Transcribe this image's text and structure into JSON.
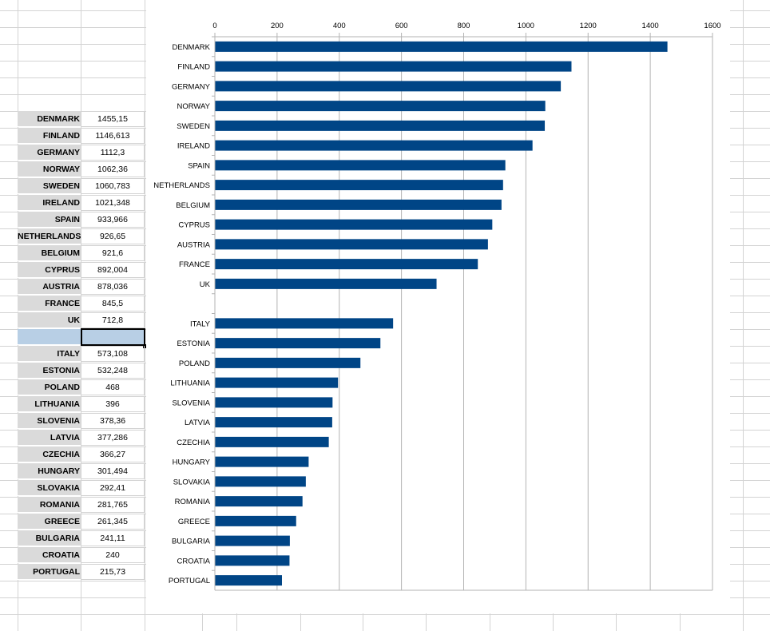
{
  "spreadsheet": {
    "rows": [
      {
        "name": "DENMARK",
        "value": "1455,15"
      },
      {
        "name": "FINLAND",
        "value": "1146,613"
      },
      {
        "name": "GERMANY",
        "value": "1112,3"
      },
      {
        "name": "NORWAY",
        "value": "1062,36"
      },
      {
        "name": "SWEDEN",
        "value": "1060,783"
      },
      {
        "name": "IRELAND",
        "value": "1021,348"
      },
      {
        "name": "SPAIN",
        "value": "933,966"
      },
      {
        "name": "NETHERLANDS",
        "value": "926,65"
      },
      {
        "name": "BELGIUM",
        "value": "921,6"
      },
      {
        "name": "CYPRUS",
        "value": "892,004"
      },
      {
        "name": "AUSTRIA",
        "value": "878,036"
      },
      {
        "name": "FRANCE",
        "value": "845,5"
      },
      {
        "name": "UK",
        "value": "712,8"
      },
      {
        "name": "",
        "value": "",
        "selected": true
      },
      {
        "name": "ITALY",
        "value": "573,108"
      },
      {
        "name": "ESTONIA",
        "value": "532,248"
      },
      {
        "name": "POLAND",
        "value": "468"
      },
      {
        "name": "LITHUANIA",
        "value": "396"
      },
      {
        "name": "SLOVENIA",
        "value": "378,36"
      },
      {
        "name": "LATVIA",
        "value": "377,286"
      },
      {
        "name": "CZECHIA",
        "value": "366,27"
      },
      {
        "name": "HUNGARY",
        "value": "301,494"
      },
      {
        "name": "SLOVAKIA",
        "value": "292,41"
      },
      {
        "name": "ROMANIA",
        "value": "281,765"
      },
      {
        "name": "GREECE",
        "value": "261,345"
      },
      {
        "name": "BULGARIA",
        "value": "241,11"
      },
      {
        "name": "CROATIA",
        "value": "240"
      },
      {
        "name": "PORTUGAL",
        "value": "215,73"
      }
    ]
  },
  "chart_data": {
    "type": "bar",
    "orientation": "horizontal",
    "categories": [
      "DENMARK",
      "FINLAND",
      "GERMANY",
      "NORWAY",
      "SWEDEN",
      "IRELAND",
      "SPAIN",
      "NETHERLANDS",
      "BELGIUM",
      "CYPRUS",
      "AUSTRIA",
      "FRANCE",
      "UK",
      "",
      "ITALY",
      "ESTONIA",
      "POLAND",
      "LITHUANIA",
      "SLOVENIA",
      "LATVIA",
      "CZECHIA",
      "HUNGARY",
      "SLOVAKIA",
      "ROMANIA",
      "GREECE",
      "BULGARIA",
      "CROATIA",
      "PORTUGAL"
    ],
    "values": [
      1455.15,
      1146.613,
      1112.3,
      1062.36,
      1060.783,
      1021.348,
      933.966,
      926.65,
      921.6,
      892.004,
      878.036,
      845.5,
      712.8,
      null,
      573.108,
      532.248,
      468,
      396,
      378.36,
      377.286,
      366.27,
      301.494,
      292.41,
      281.765,
      261.345,
      241.11,
      240,
      215.73
    ],
    "xlim": [
      0,
      1600
    ],
    "xticks": [
      0,
      200,
      400,
      600,
      800,
      1000,
      1200,
      1400,
      1600
    ],
    "xtick_labels": [
      "0",
      "200",
      "400",
      "600",
      "800",
      "1000",
      "1200",
      "1400",
      "1600"
    ],
    "axis_position": "top",
    "grid": true,
    "bar_color": "#004586"
  }
}
